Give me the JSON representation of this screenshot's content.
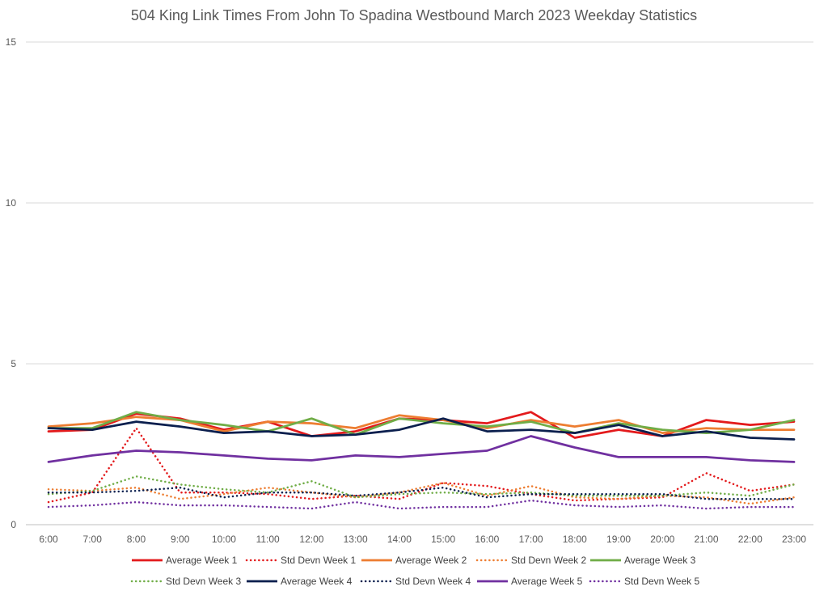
{
  "chart_data": {
    "type": "line",
    "title": "504 King Link Times From John To Spadina Westbound March 2023 Weekday Statistics",
    "xlabel": "",
    "ylabel": "",
    "ylim": [
      0,
      15
    ],
    "yticks": [
      0,
      5,
      10,
      15
    ],
    "grid": "horizontal",
    "legend_position": "bottom",
    "categories": [
      "6:00",
      "7:00",
      "8:00",
      "9:00",
      "10:00",
      "11:00",
      "12:00",
      "13:00",
      "14:00",
      "15:00",
      "16:00",
      "17:00",
      "18:00",
      "19:00",
      "20:00",
      "21:00",
      "22:00",
      "23:00"
    ],
    "series": [
      {
        "name": "Average Week 1",
        "color": "#e31a1c",
        "style": "solid",
        "values": [
          2.9,
          2.95,
          3.45,
          3.3,
          2.95,
          3.2,
          2.75,
          2.9,
          3.3,
          3.25,
          3.15,
          3.5,
          2.7,
          2.95,
          2.75,
          3.25,
          3.1,
          3.2
        ]
      },
      {
        "name": "Std Devn Week 1",
        "color": "#e31a1c",
        "style": "dotted",
        "values": [
          0.7,
          1.0,
          3.0,
          1.0,
          1.0,
          0.95,
          0.8,
          0.9,
          0.8,
          1.3,
          1.2,
          0.95,
          0.75,
          0.8,
          0.85,
          1.6,
          1.05,
          1.25
        ]
      },
      {
        "name": "Average Week 2",
        "color": "#ed7d31",
        "style": "solid",
        "values": [
          3.05,
          3.15,
          3.35,
          3.25,
          2.9,
          3.2,
          3.15,
          3.0,
          3.4,
          3.25,
          3.0,
          3.25,
          3.05,
          3.25,
          2.85,
          3.0,
          2.95,
          2.95
        ]
      },
      {
        "name": "Std Devn Week 2",
        "color": "#ed7d31",
        "style": "dotted",
        "values": [
          1.1,
          1.05,
          1.15,
          0.8,
          0.95,
          1.15,
          1.0,
          0.85,
          1.0,
          1.3,
          0.9,
          1.2,
          0.85,
          0.8,
          0.9,
          0.85,
          0.65,
          0.85
        ]
      },
      {
        "name": "Average Week 3",
        "color": "#70ad47",
        "style": "solid",
        "values": [
          3.0,
          3.0,
          3.5,
          3.25,
          3.1,
          2.9,
          3.3,
          2.8,
          3.3,
          3.15,
          3.05,
          3.2,
          2.85,
          3.15,
          2.95,
          2.85,
          2.95,
          3.25
        ]
      },
      {
        "name": "Std Devn Week 3",
        "color": "#70ad47",
        "style": "dotted",
        "values": [
          0.95,
          1.05,
          1.5,
          1.25,
          1.1,
          1.0,
          1.35,
          0.85,
          0.95,
          1.0,
          0.95,
          1.0,
          0.9,
          0.9,
          0.9,
          1.0,
          0.9,
          1.25
        ]
      },
      {
        "name": "Average Week 4",
        "color": "#0b1f4e",
        "style": "solid",
        "values": [
          3.0,
          2.95,
          3.2,
          3.05,
          2.85,
          2.9,
          2.75,
          2.8,
          2.95,
          3.3,
          2.9,
          2.95,
          2.85,
          3.1,
          2.75,
          2.9,
          2.7,
          2.65
        ]
      },
      {
        "name": "Std Devn Week 4",
        "color": "#0b1f4e",
        "style": "dotted",
        "values": [
          1.0,
          1.0,
          1.05,
          1.15,
          0.85,
          1.0,
          1.0,
          0.9,
          1.0,
          1.15,
          0.85,
          0.95,
          0.95,
          0.95,
          0.95,
          0.8,
          0.8,
          0.8
        ]
      },
      {
        "name": "Average Week 5",
        "color": "#7030a0",
        "style": "solid",
        "values": [
          1.95,
          2.15,
          2.3,
          2.25,
          2.15,
          2.05,
          2.0,
          2.15,
          2.1,
          2.2,
          2.3,
          2.75,
          2.4,
          2.1,
          2.1,
          2.1,
          2.0,
          1.95
        ]
      },
      {
        "name": "Std Devn Week 5",
        "color": "#7030a0",
        "style": "dotted",
        "values": [
          0.55,
          0.6,
          0.7,
          0.6,
          0.6,
          0.55,
          0.5,
          0.7,
          0.5,
          0.55,
          0.55,
          0.75,
          0.6,
          0.55,
          0.6,
          0.5,
          0.55,
          0.55
        ]
      }
    ]
  }
}
